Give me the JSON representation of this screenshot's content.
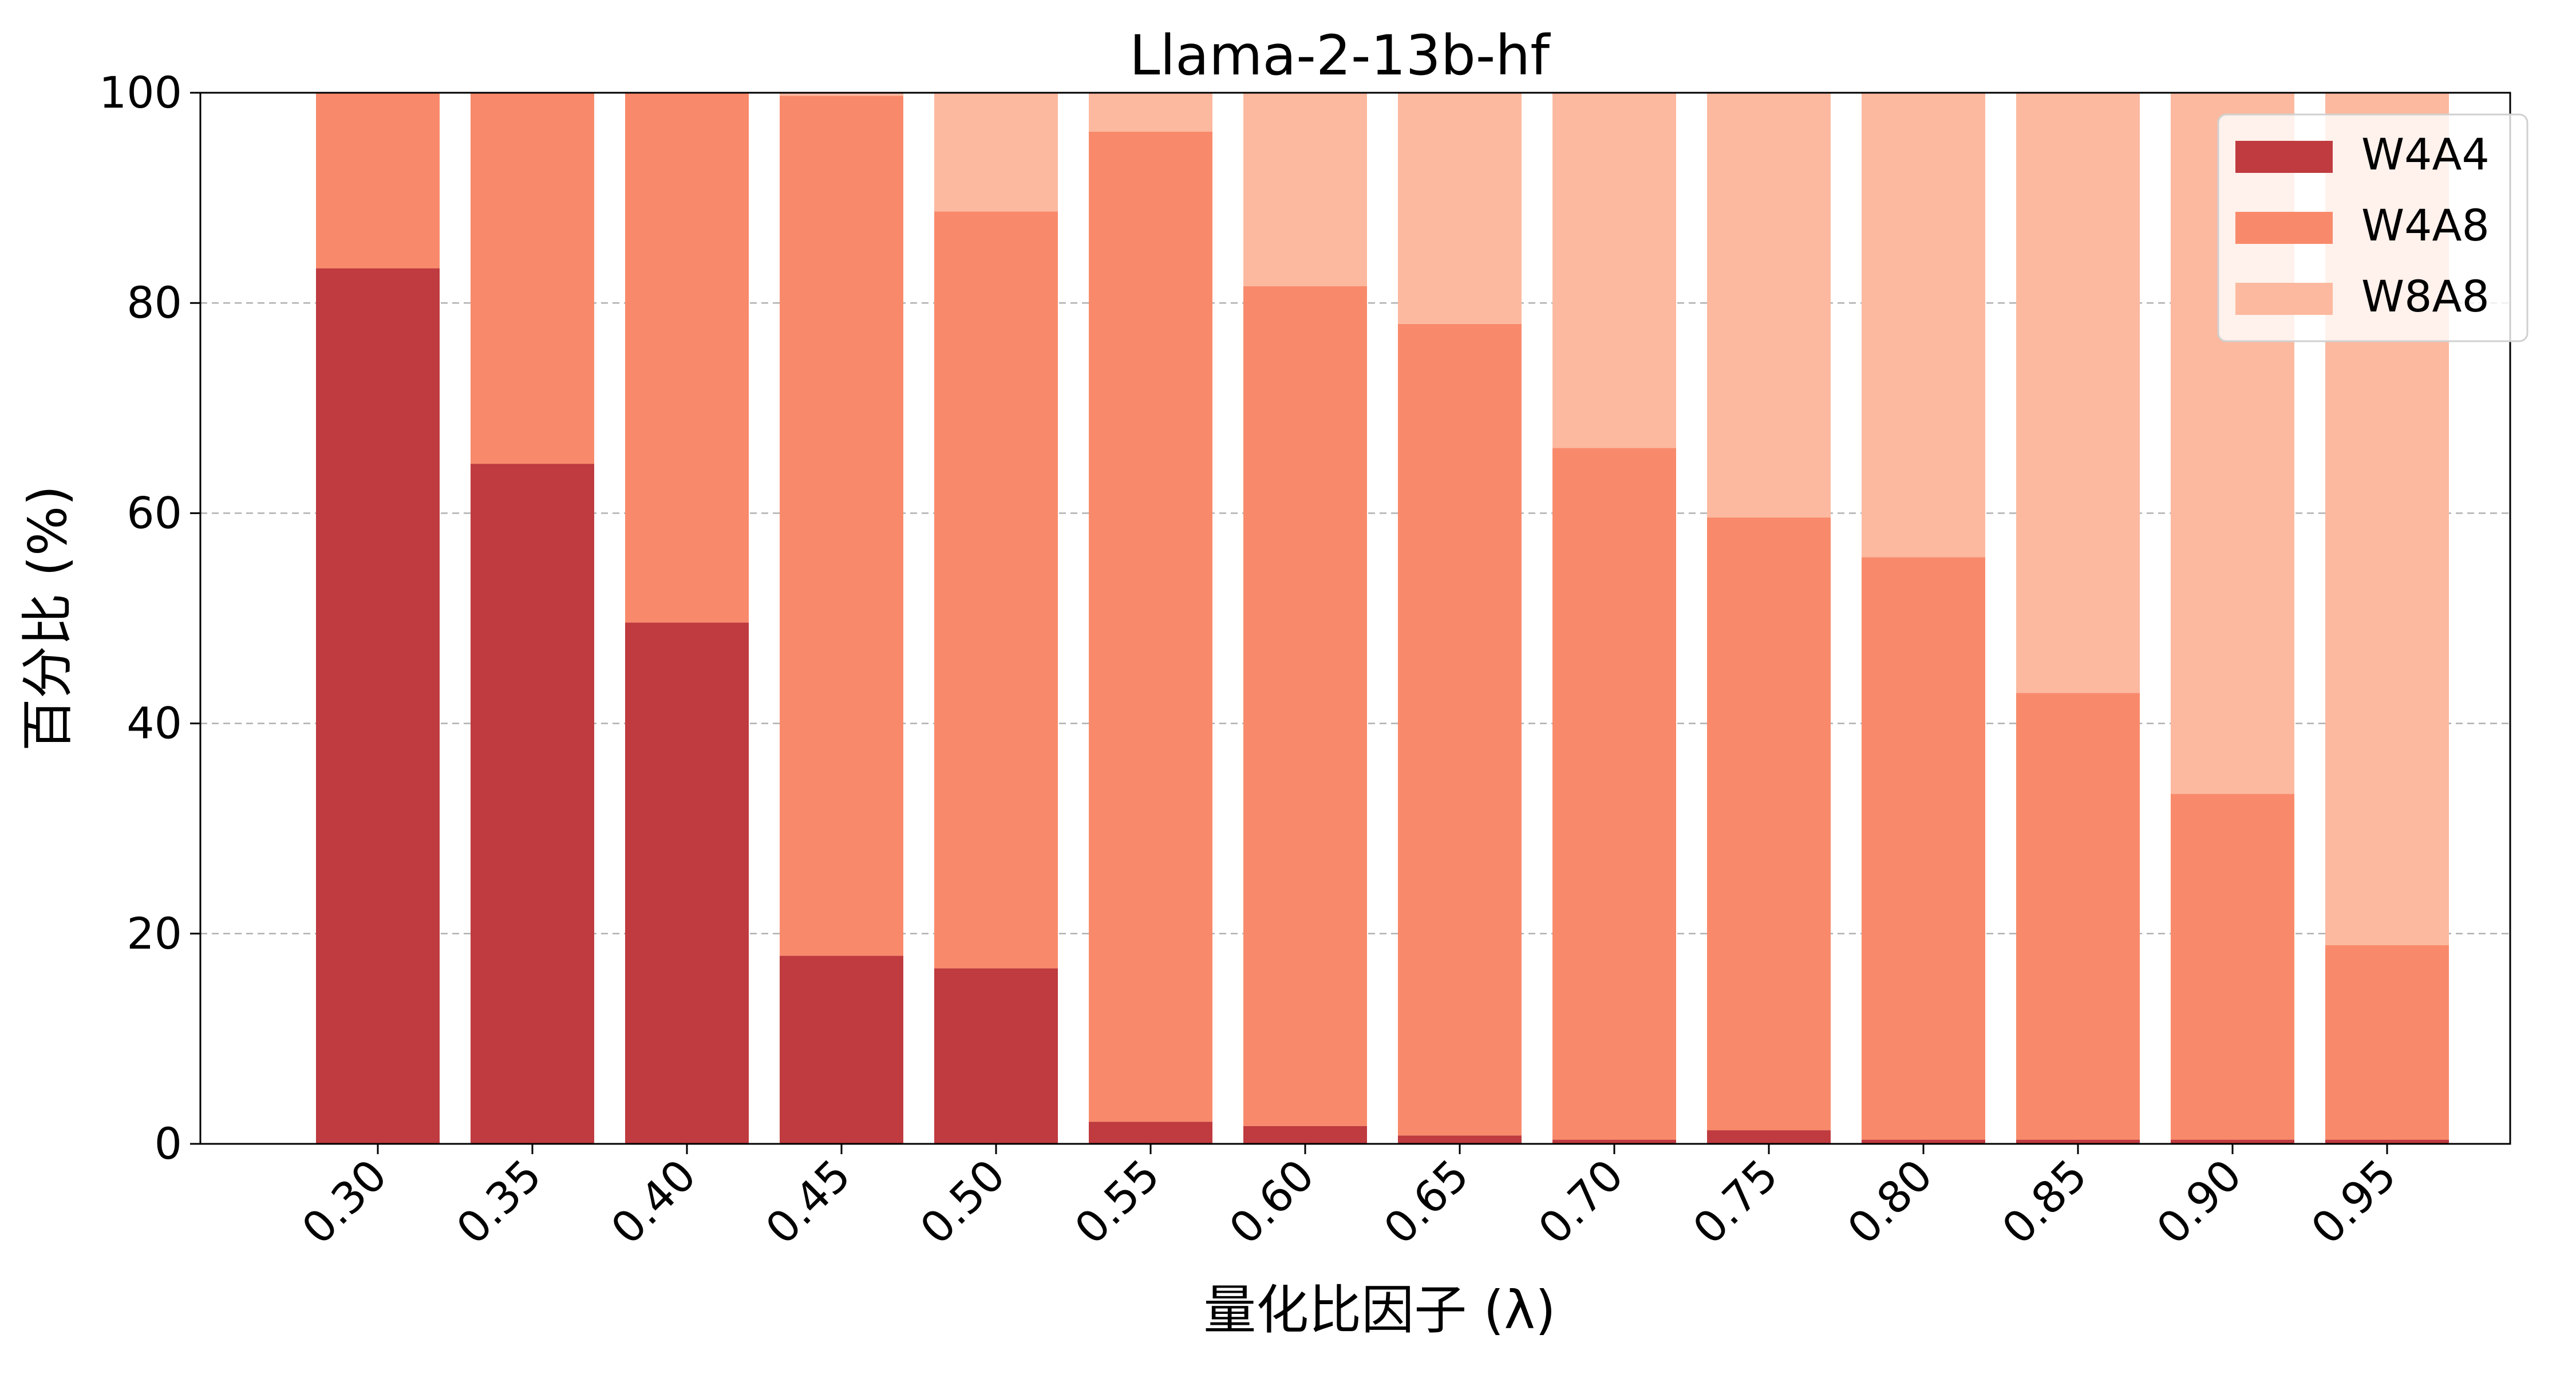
{
  "chart_data": {
    "type": "bar",
    "stacked": true,
    "title": "Llama-2-13b-hf",
    "xlabel": "量化比因子 (λ)",
    "ylabel": "百分比 (%)",
    "ylim": [
      0,
      100
    ],
    "yticks": [
      0,
      20,
      40,
      60,
      80,
      100
    ],
    "grid": "y-dashed",
    "legend_position": "top-right",
    "categories": [
      "0.30",
      "0.35",
      "0.40",
      "0.45",
      "0.50",
      "0.55",
      "0.60",
      "0.65",
      "0.70",
      "0.75",
      "0.80",
      "0.85",
      "0.90",
      "0.95"
    ],
    "series": [
      {
        "name": "W4A4",
        "color": "#bf3b3f",
        "values": [
          83.3,
          64.7,
          49.6,
          17.9,
          16.7,
          2.1,
          1.7,
          0.8,
          0.4,
          1.3,
          0.4,
          0.4,
          0.4,
          0.4
        ]
      },
      {
        "name": "W4A8",
        "color": "#f88a6b",
        "values": [
          16.7,
          35.3,
          50.4,
          81.8,
          72.0,
          94.2,
          79.9,
          77.2,
          65.8,
          58.3,
          55.4,
          42.5,
          32.9,
          18.5
        ]
      },
      {
        "name": "W8A8",
        "color": "#fcb99f",
        "values": [
          0.0,
          0.0,
          0.0,
          0.3,
          11.3,
          3.7,
          18.4,
          22.0,
          33.8,
          40.4,
          44.2,
          57.1,
          66.7,
          81.1
        ]
      }
    ]
  }
}
